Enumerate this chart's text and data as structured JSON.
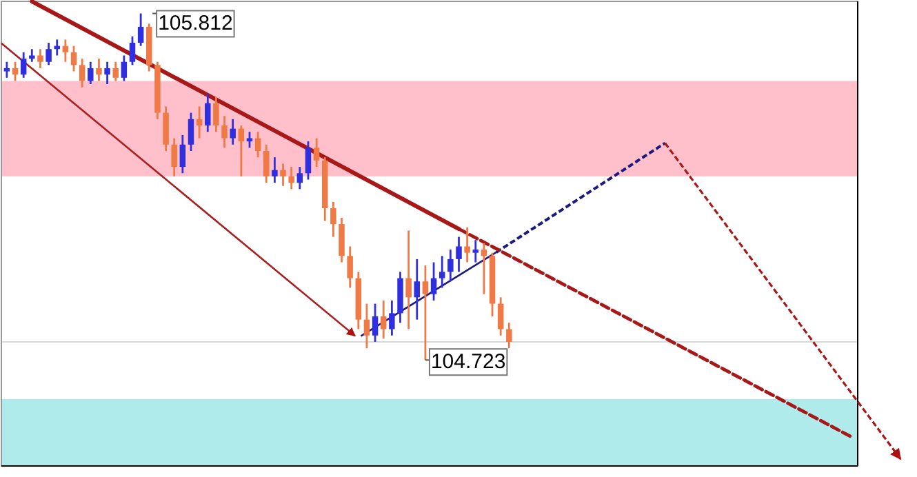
{
  "chart_data": {
    "type": "candlestick",
    "categories": [
      null,
      null,
      null,
      null,
      null,
      null,
      null,
      null,
      null,
      null,
      null,
      null,
      null,
      null,
      null,
      null,
      null,
      null,
      null,
      null,
      null,
      null,
      null,
      null,
      null,
      null,
      null,
      null,
      null,
      null,
      null,
      null,
      null,
      null,
      null,
      null,
      null,
      null,
      null,
      null,
      null,
      null,
      null,
      null,
      null,
      null,
      null,
      null,
      null,
      null,
      null,
      null,
      null,
      null,
      null,
      null,
      null,
      null,
      null,
      null,
      null,
      null,
      null,
      null,
      null,
      null,
      null,
      null,
      null,
      null,
      null,
      null,
      null,
      null,
      null,
      null,
      null,
      null,
      null,
      null,
      null,
      null,
      null,
      null,
      null,
      null,
      null,
      null,
      null,
      null,
      null,
      null,
      null,
      null,
      null,
      null,
      null,
      null,
      null,
      null,
      null,
      null
    ],
    "ohlc": [
      [
        105.63,
        105.66,
        105.61,
        105.64
      ],
      [
        105.64,
        105.66,
        105.6,
        105.62
      ],
      [
        105.62,
        105.69,
        105.61,
        105.67
      ],
      [
        105.67,
        105.7,
        105.66,
        105.68
      ],
      [
        105.68,
        105.7,
        105.64,
        105.66
      ],
      [
        105.66,
        105.72,
        105.65,
        105.7
      ],
      [
        105.7,
        105.73,
        105.68,
        105.71
      ],
      [
        105.71,
        105.73,
        105.66,
        105.69
      ],
      [
        105.69,
        105.71,
        105.63,
        105.65
      ],
      [
        105.65,
        105.67,
        105.58,
        105.6
      ],
      [
        105.6,
        105.66,
        105.59,
        105.64
      ],
      [
        105.64,
        105.67,
        105.6,
        105.62
      ],
      [
        105.62,
        105.66,
        105.59,
        105.64
      ],
      [
        105.64,
        105.66,
        105.6,
        105.61
      ],
      [
        105.61,
        105.68,
        105.6,
        105.66
      ],
      [
        105.66,
        105.74,
        105.65,
        105.72
      ],
      [
        105.72,
        105.812,
        105.71,
        105.77
      ],
      [
        105.77,
        105.78,
        105.63,
        105.65
      ],
      [
        105.65,
        105.66,
        105.48,
        105.5
      ],
      [
        105.5,
        105.52,
        105.38,
        105.4
      ],
      [
        105.4,
        105.42,
        105.3,
        105.33
      ],
      [
        105.33,
        105.43,
        105.31,
        105.4
      ],
      [
        105.4,
        105.5,
        105.38,
        105.48
      ],
      [
        105.48,
        105.52,
        105.42,
        105.46
      ],
      [
        105.46,
        105.56,
        105.44,
        105.53
      ],
      [
        105.53,
        105.55,
        105.44,
        105.46
      ],
      [
        105.46,
        105.49,
        105.39,
        105.42
      ],
      [
        105.42,
        105.48,
        105.4,
        105.45
      ],
      [
        105.45,
        105.46,
        105.3,
        105.41
      ],
      [
        105.41,
        105.44,
        105.39,
        105.42
      ],
      [
        105.42,
        105.44,
        105.36,
        105.38
      ],
      [
        105.38,
        105.4,
        105.28,
        105.3
      ],
      [
        105.3,
        105.36,
        105.28,
        105.32
      ],
      [
        105.32,
        105.34,
        105.27,
        105.3
      ],
      [
        105.3,
        105.33,
        105.26,
        105.28
      ],
      [
        105.28,
        105.33,
        105.26,
        105.31
      ],
      [
        105.31,
        105.41,
        105.29,
        105.39
      ],
      [
        105.39,
        105.42,
        105.33,
        105.35
      ],
      [
        105.35,
        105.36,
        105.16,
        105.2
      ],
      [
        105.2,
        105.22,
        105.11,
        105.15
      ],
      [
        105.15,
        105.17,
        105.03,
        105.05
      ],
      [
        105.05,
        105.08,
        104.95,
        104.98
      ],
      [
        104.98,
        105.0,
        104.82,
        104.85
      ],
      [
        104.85,
        104.9,
        104.76,
        104.8
      ],
      [
        104.8,
        104.9,
        104.78,
        104.86
      ],
      [
        104.86,
        104.91,
        104.79,
        104.82
      ],
      [
        104.82,
        104.91,
        104.8,
        104.87
      ],
      [
        104.87,
        105.0,
        104.84,
        104.98
      ],
      [
        104.98,
        105.13,
        104.82,
        104.92
      ],
      [
        104.92,
        105.04,
        104.85,
        104.97
      ],
      [
        104.97,
        105.02,
        104.723,
        104.93
      ],
      [
        104.93,
        105.03,
        104.91,
        104.98
      ],
      [
        104.98,
        105.05,
        104.95,
        105.0
      ],
      [
        105.0,
        105.07,
        104.97,
        105.04
      ],
      [
        105.04,
        105.11,
        105.0,
        105.08
      ],
      [
        105.08,
        105.14,
        105.03,
        105.06
      ],
      [
        105.06,
        105.1,
        105.03,
        105.07
      ],
      [
        105.07,
        105.09,
        104.93,
        105.05
      ],
      [
        105.05,
        105.06,
        104.86,
        104.9
      ],
      [
        104.9,
        104.92,
        104.8,
        104.82
      ],
      [
        104.82,
        104.84,
        104.76,
        104.78
      ],
      null,
      null,
      null,
      null,
      null,
      null,
      null,
      null,
      null,
      null,
      null,
      null,
      null,
      null,
      null,
      null,
      null,
      null,
      null,
      null,
      null,
      null,
      null,
      null,
      null,
      null,
      null,
      null,
      null,
      null,
      null,
      null,
      null,
      null,
      null,
      null,
      null,
      null,
      null,
      null,
      null
    ],
    "series": [
      {
        "type": "line",
        "color": "#a81818",
        "line_style": "solid",
        "values": [
          null,
          null,
          null,
          105.85,
          null,
          null,
          null,
          null,
          null,
          null,
          null,
          null,
          null,
          null,
          null,
          null,
          null,
          null,
          null,
          null,
          null,
          null,
          null,
          null,
          null,
          null,
          null,
          null,
          null,
          null,
          null,
          null,
          null,
          null,
          null,
          null,
          null,
          null,
          null,
          null,
          null,
          null,
          null,
          null,
          null,
          null,
          null,
          null,
          null,
          null,
          null,
          null,
          null,
          null,
          105.135,
          null,
          null,
          null,
          null,
          null,
          null,
          null,
          null,
          null,
          null,
          null,
          null,
          null,
          null,
          null,
          null,
          null,
          null,
          null,
          null,
          null,
          null,
          null,
          null,
          null,
          null,
          null,
          null,
          null,
          null,
          null,
          null,
          null,
          null,
          null,
          null,
          null,
          null,
          null,
          null,
          null,
          null,
          null,
          null,
          null,
          null,
          null
        ]
      },
      {
        "type": "line",
        "color": "#a81818",
        "line_style": "dashed",
        "values": [
          null,
          null,
          null,
          null,
          null,
          null,
          null,
          null,
          null,
          null,
          null,
          null,
          null,
          null,
          null,
          null,
          null,
          null,
          null,
          null,
          null,
          null,
          null,
          null,
          null,
          null,
          null,
          null,
          null,
          null,
          null,
          null,
          null,
          null,
          null,
          null,
          null,
          null,
          null,
          null,
          null,
          null,
          null,
          null,
          null,
          null,
          null,
          null,
          null,
          null,
          null,
          null,
          null,
          null,
          105.135,
          null,
          null,
          null,
          null,
          null,
          null,
          null,
          null,
          null,
          null,
          null,
          null,
          null,
          null,
          null,
          null,
          null,
          null,
          null,
          null,
          null,
          null,
          null,
          null,
          null,
          null,
          null,
          null,
          null,
          null,
          null,
          null,
          null,
          null,
          null,
          null,
          null,
          null,
          null,
          null,
          null,
          null,
          null,
          null,
          null,
          null,
          104.48
        ]
      }
    ],
    "ylim": [
      104.39,
      105.85
    ],
    "bands": [
      {
        "axis": "y",
        "from": 105.3,
        "to": 105.6,
        "color": "#ffc0cb"
      },
      {
        "axis": "y",
        "from": 104.39,
        "to": 104.6,
        "color": "#b0ebeb"
      }
    ],
    "ref_lines": [
      {
        "axis": "y",
        "value": 104.78,
        "color": "#d8d8d8"
      }
    ],
    "annotations": [
      "105.812",
      "104.723"
    ]
  }
}
